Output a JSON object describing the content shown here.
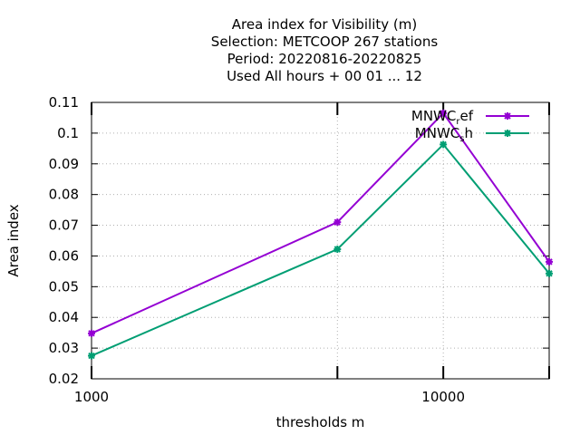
{
  "chart_data": {
    "type": "line",
    "title_lines": [
      "Area index  for Visibility (m)",
      "Selection: METCOOP    267 stations",
      "Period: 20220816-20220825",
      "Used  All hours + 00 01 ... 12"
    ],
    "xlabel": "thresholds m",
    "ylabel": "Area index",
    "x_scale": "log",
    "xlim": [
      1000,
      20000
    ],
    "ylim": [
      0.02,
      0.11
    ],
    "x_ticks": [
      1000,
      10000
    ],
    "x_tick_labels": [
      "1000",
      "10000"
    ],
    "y_ticks": [
      0.02,
      0.03,
      0.04,
      0.05,
      0.06,
      0.07,
      0.08,
      0.09,
      0.1,
      0.11
    ],
    "y_tick_labels": [
      "0.02",
      "0.03",
      "0.04",
      "0.05",
      "0.06",
      "0.07",
      "0.08",
      "0.09",
      "0.1",
      "0.11"
    ],
    "grid": true,
    "legend_position": "top-right",
    "x": [
      1000,
      5000,
      10000,
      20000
    ],
    "series": [
      {
        "name": "MNWC_ref",
        "name_main": "MNWC",
        "name_sub": "r",
        "name_rest": "ef",
        "color": "#9400d3",
        "values": [
          0.0348,
          0.071,
          0.1065,
          0.0581
        ]
      },
      {
        "name": "MNWC_sh",
        "name_main": "MNWC",
        "name_sub": "s",
        "name_rest": "h",
        "color": "#009e73",
        "values": [
          0.0275,
          0.0622,
          0.0963,
          0.0543
        ]
      }
    ]
  }
}
